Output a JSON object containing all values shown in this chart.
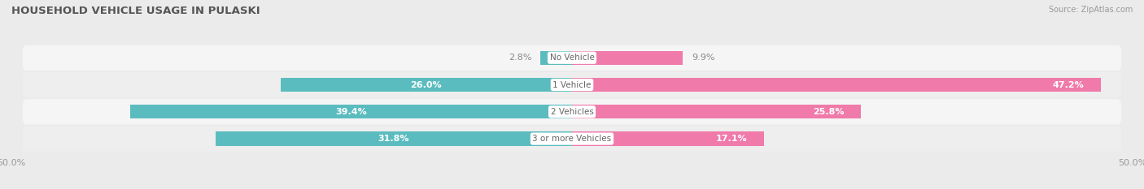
{
  "title": "HOUSEHOLD VEHICLE USAGE IN PULASKI",
  "source": "Source: ZipAtlas.com",
  "categories": [
    "No Vehicle",
    "1 Vehicle",
    "2 Vehicles",
    "3 or more Vehicles"
  ],
  "owner_values": [
    2.8,
    26.0,
    39.4,
    31.8
  ],
  "renter_values": [
    9.9,
    47.2,
    25.8,
    17.1
  ],
  "owner_color": "#5bbcbf",
  "renter_color": "#f07aaa",
  "owner_color_light": "#5bbcbf",
  "renter_color_light": "#f4a0c0",
  "axis_limit": 50.0,
  "bar_height": 0.52,
  "bg_color": "#ebebeb",
  "row_bg_color": "#f5f5f5",
  "row_alt_bg_color": "#eeeeee",
  "tick_label_color": "#999999",
  "title_color": "#555555",
  "value_label_color_white": "#ffffff",
  "value_label_color_dark": "#888888",
  "center_label_color": "#666666",
  "white_label_threshold": 15.0
}
